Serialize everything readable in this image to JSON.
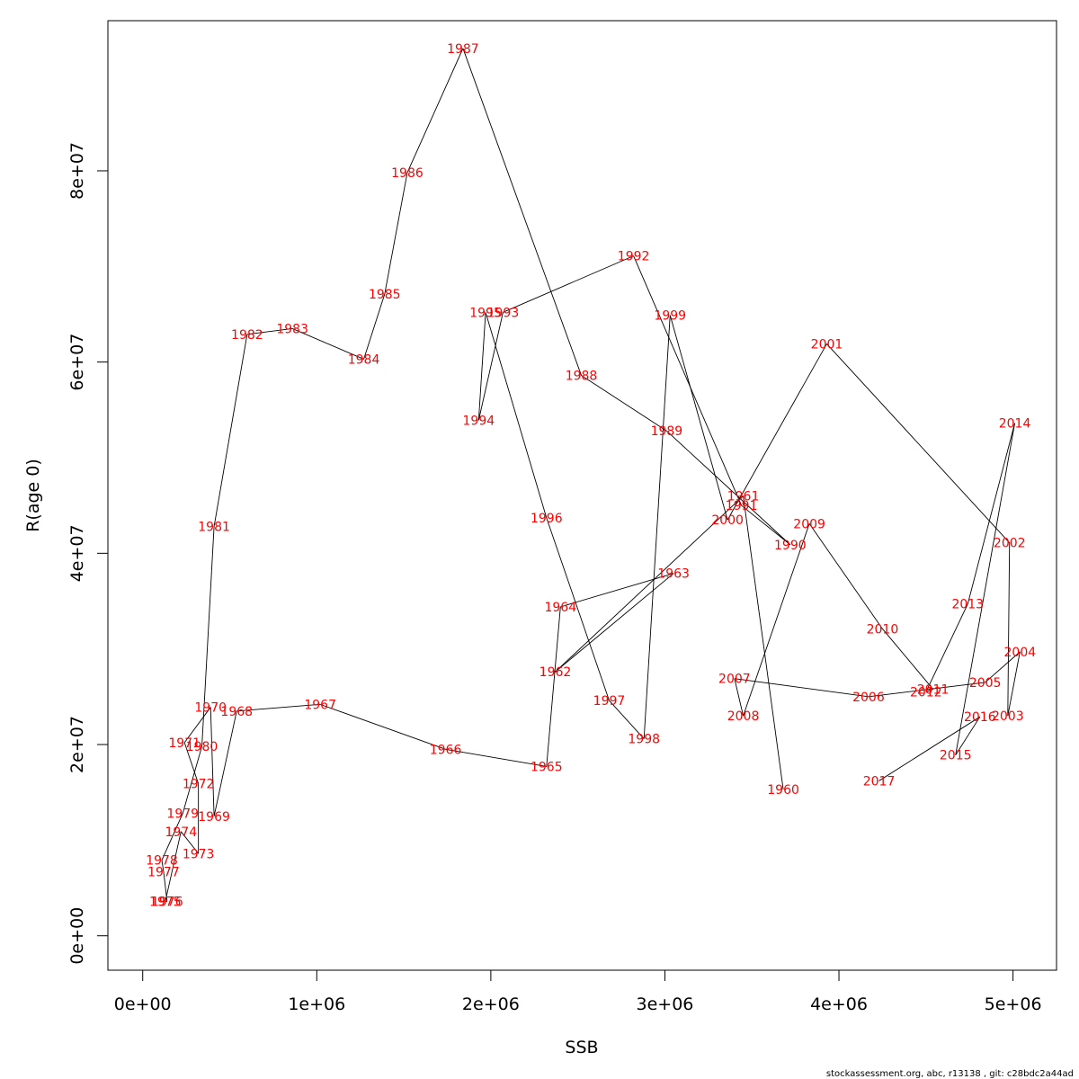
{
  "chart_data": {
    "type": "line",
    "title": "",
    "xlabel": "SSB",
    "ylabel": "R(age 0)",
    "xlim": [
      -200000,
      5250000
    ],
    "ylim": [
      -3600000,
      95700000
    ],
    "x_ticks": [
      {
        "value": 0,
        "label": "0e+00"
      },
      {
        "value": 1000000,
        "label": "1e+06"
      },
      {
        "value": 2000000,
        "label": "2e+06"
      },
      {
        "value": 3000000,
        "label": "3e+06"
      },
      {
        "value": 4000000,
        "label": "4e+06"
      },
      {
        "value": 5000000,
        "label": "5e+06"
      }
    ],
    "y_ticks": [
      {
        "value": 0,
        "label": "0e+00"
      },
      {
        "value": 20000000,
        "label": "2e+07"
      },
      {
        "value": 40000000,
        "label": "4e+07"
      },
      {
        "value": 60000000,
        "label": "6e+07"
      },
      {
        "value": 80000000,
        "label": "8e+07"
      }
    ],
    "grid": false,
    "line_color": "#000000",
    "label_color": "#ff0000",
    "points": [
      {
        "year": "1960",
        "x": 3680000,
        "y": 15300000
      },
      {
        "year": "1961",
        "x": 3450000,
        "y": 46000000
      },
      {
        "year": "1962",
        "x": 2370000,
        "y": 27600000
      },
      {
        "year": "1963",
        "x": 3050000,
        "y": 37900000
      },
      {
        "year": "1964",
        "x": 2400000,
        "y": 34400000
      },
      {
        "year": "1965",
        "x": 2320000,
        "y": 17700000
      },
      {
        "year": "1966",
        "x": 1740000,
        "y": 19500000
      },
      {
        "year": "1967",
        "x": 1020000,
        "y": 24200000
      },
      {
        "year": "1968",
        "x": 540000,
        "y": 23500000
      },
      {
        "year": "1969",
        "x": 410000,
        "y": 12500000
      },
      {
        "year": "1970",
        "x": 390000,
        "y": 23900000
      },
      {
        "year": "1971",
        "x": 240000,
        "y": 20200000
      },
      {
        "year": "1972",
        "x": 320000,
        "y": 15900000
      },
      {
        "year": "1973",
        "x": 320000,
        "y": 8600000
      },
      {
        "year": "1974",
        "x": 220000,
        "y": 10900000
      },
      {
        "year": "1975",
        "x": 130000,
        "y": 3600000
      },
      {
        "year": "1976",
        "x": 140000,
        "y": 3600000
      },
      {
        "year": "1977",
        "x": 120000,
        "y": 6700000
      },
      {
        "year": "1978",
        "x": 110000,
        "y": 7900000
      },
      {
        "year": "1979",
        "x": 230000,
        "y": 12800000
      },
      {
        "year": "1980",
        "x": 340000,
        "y": 19800000
      },
      {
        "year": "1981",
        "x": 410000,
        "y": 42800000
      },
      {
        "year": "1982",
        "x": 600000,
        "y": 62900000
      },
      {
        "year": "1983",
        "x": 860000,
        "y": 63500000
      },
      {
        "year": "1984",
        "x": 1270000,
        "y": 60300000
      },
      {
        "year": "1985",
        "x": 1390000,
        "y": 67100000
      },
      {
        "year": "1986",
        "x": 1520000,
        "y": 79800000
      },
      {
        "year": "1987",
        "x": 1840000,
        "y": 92800000
      },
      {
        "year": "1988",
        "x": 2520000,
        "y": 58600000
      },
      {
        "year": "1989",
        "x": 3010000,
        "y": 52800000
      },
      {
        "year": "1990",
        "x": 3720000,
        "y": 40900000
      },
      {
        "year": "1991",
        "x": 3440000,
        "y": 45000000
      },
      {
        "year": "1992",
        "x": 2820000,
        "y": 71100000
      },
      {
        "year": "1993",
        "x": 2070000,
        "y": 65200000
      },
      {
        "year": "1994",
        "x": 1930000,
        "y": 53900000
      },
      {
        "year": "1995",
        "x": 1970000,
        "y": 65200000
      },
      {
        "year": "1996",
        "x": 2320000,
        "y": 43700000
      },
      {
        "year": "1997",
        "x": 2680000,
        "y": 24600000
      },
      {
        "year": "1998",
        "x": 2880000,
        "y": 20600000
      },
      {
        "year": "1999",
        "x": 3030000,
        "y": 64900000
      },
      {
        "year": "2000",
        "x": 3360000,
        "y": 43500000
      },
      {
        "year": "2001",
        "x": 3930000,
        "y": 61900000
      },
      {
        "year": "2002",
        "x": 4980000,
        "y": 41100000
      },
      {
        "year": "2003",
        "x": 4970000,
        "y": 23000000
      },
      {
        "year": "2004",
        "x": 5040000,
        "y": 29700000
      },
      {
        "year": "2005",
        "x": 4840000,
        "y": 26500000
      },
      {
        "year": "2006",
        "x": 4170000,
        "y": 25000000
      },
      {
        "year": "2007",
        "x": 3400000,
        "y": 26900000
      },
      {
        "year": "2008",
        "x": 3450000,
        "y": 23000000
      },
      {
        "year": "2009",
        "x": 3830000,
        "y": 43100000
      },
      {
        "year": "2010",
        "x": 4250000,
        "y": 32100000
      },
      {
        "year": "2011",
        "x": 4540000,
        "y": 25800000
      },
      {
        "year": "2012",
        "x": 4500000,
        "y": 25500000
      },
      {
        "year": "2013",
        "x": 4740000,
        "y": 34700000
      },
      {
        "year": "2014",
        "x": 5010000,
        "y": 53600000
      },
      {
        "year": "2015",
        "x": 4670000,
        "y": 18900000
      },
      {
        "year": "2016",
        "x": 4810000,
        "y": 22900000
      },
      {
        "year": "2017",
        "x": 4230000,
        "y": 16200000
      }
    ]
  },
  "footer": "stockassessment.org, abc, r13138 , git: c28bdc2a44ad"
}
